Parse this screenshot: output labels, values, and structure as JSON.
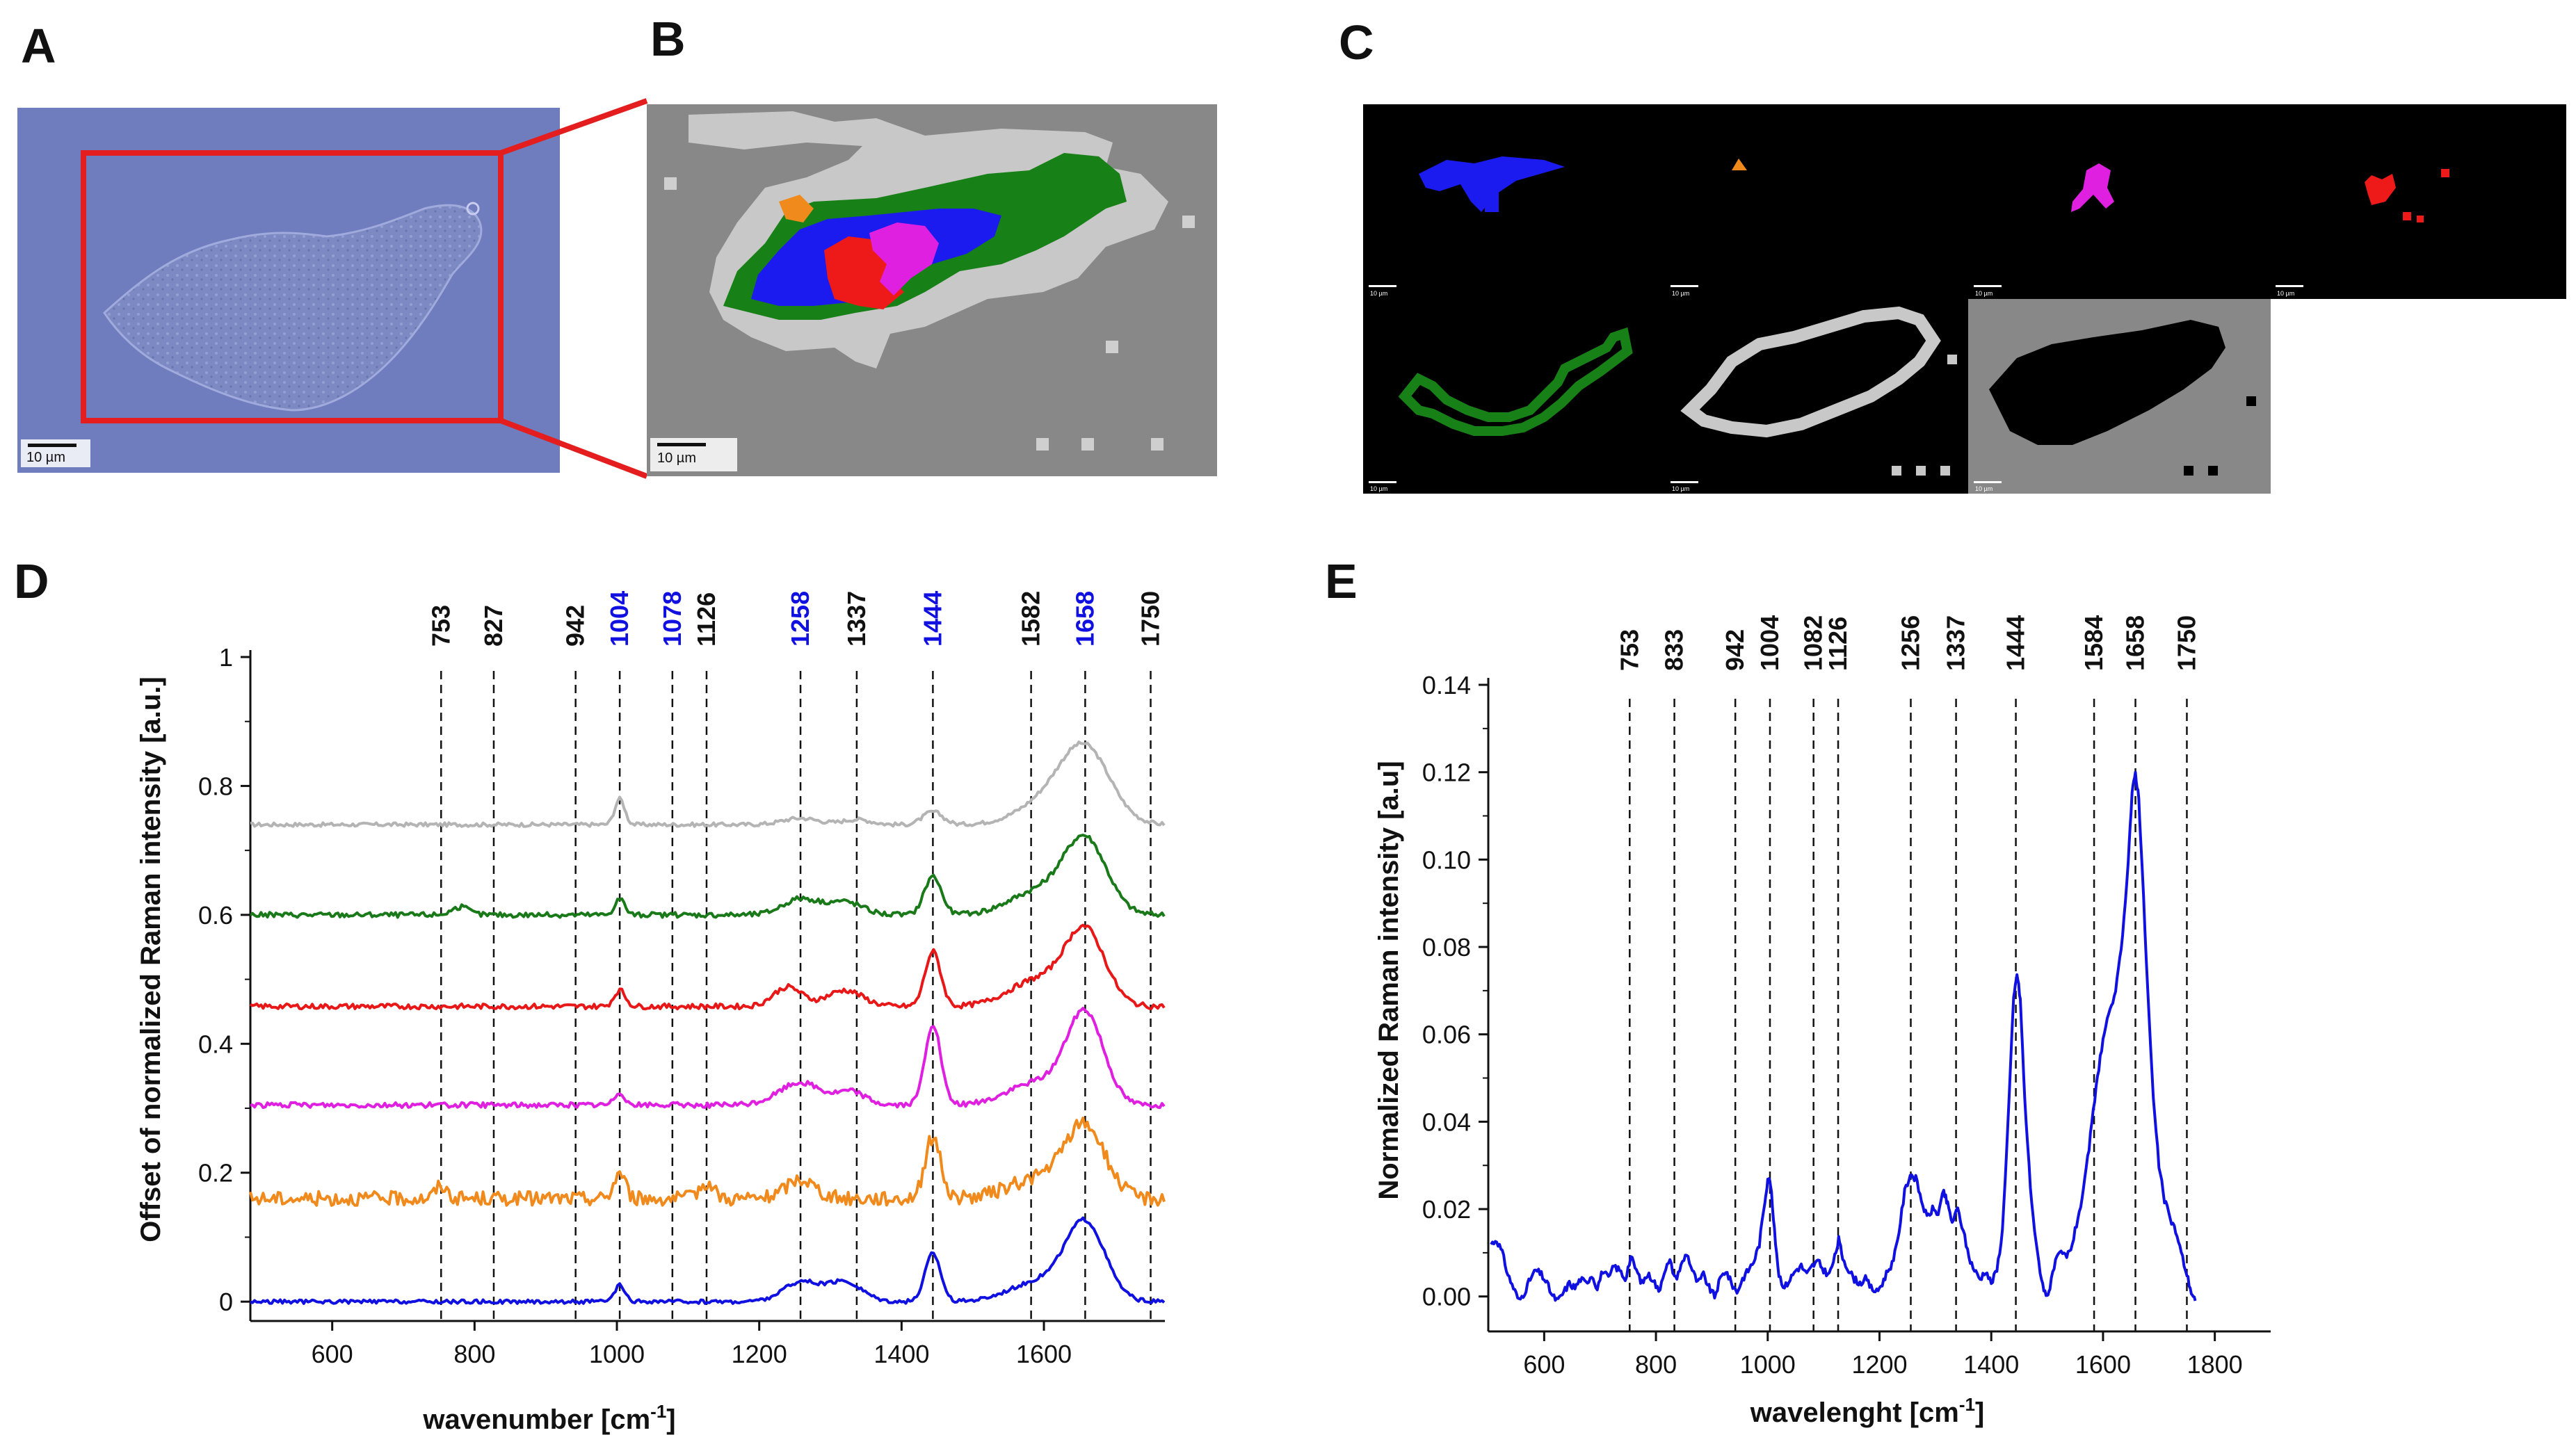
{
  "panels": {
    "a": "A",
    "b": "B",
    "c": "C",
    "d": "D",
    "e": "E"
  },
  "scale_bar_label": "10 µm",
  "chart_data": [
    {
      "type": "line",
      "panel": "D",
      "xlabel": "wavenumber [cm",
      "xlabel_sup": "-1",
      "xlabel_end": "]",
      "ylabel": "Offset of normalized Raman intensity [a.u.]",
      "xlim": [
        485,
        1770
      ],
      "ylim": [
        -0.03,
        1.0
      ],
      "xticks": [
        "600",
        "800",
        "1000",
        "1200",
        "1400",
        "1600"
      ],
      "yticks": [
        "0",
        "0.2",
        "0.4",
        "0.6",
        "0.8",
        "1"
      ],
      "peak_lines": [
        753,
        827,
        942,
        1004,
        1078,
        1126,
        1258,
        1337,
        1444,
        1582,
        1658,
        1750
      ],
      "peak_labels": [
        {
          "text": "753",
          "x": 753,
          "color": "#111111"
        },
        {
          "text": "827",
          "x": 827,
          "color": "#111111"
        },
        {
          "text": "942",
          "x": 942,
          "color": "#111111"
        },
        {
          "text": "1004",
          "x": 1004,
          "color": "#1010e0"
        },
        {
          "text": "1078",
          "x": 1078,
          "color": "#1010e0"
        },
        {
          "text": "1126",
          "x": 1126,
          "color": "#111111"
        },
        {
          "text": "1258",
          "x": 1258,
          "color": "#1010e0"
        },
        {
          "text": "1337",
          "x": 1337,
          "color": "#111111"
        },
        {
          "text": "1444",
          "x": 1444,
          "color": "#1010e0"
        },
        {
          "text": "1582",
          "x": 1582,
          "color": "#111111"
        },
        {
          "text": "1658",
          "x": 1658,
          "color": "#1010e0"
        },
        {
          "text": "1750",
          "x": 1750,
          "color": "#111111"
        }
      ],
      "series": [
        {
          "name": "gray",
          "color": "#b4b4b4",
          "baseline": 0.74,
          "noise": 0.003,
          "peaks": [
            [
              1004,
              0.04,
              7
            ],
            [
              1258,
              0.01,
              25
            ],
            [
              1337,
              0.008,
              20
            ],
            [
              1444,
              0.02,
              14
            ],
            [
              1658,
              0.115,
              35
            ],
            [
              1600,
              0.03,
              40
            ]
          ]
        },
        {
          "name": "green",
          "color": "#1a7a1a",
          "baseline": 0.6,
          "noise": 0.004,
          "peaks": [
            [
              780,
              0.012,
              12
            ],
            [
              1004,
              0.025,
              7
            ],
            [
              1258,
              0.025,
              25
            ],
            [
              1320,
              0.02,
              25
            ],
            [
              1444,
              0.06,
              12
            ],
            [
              1658,
              0.115,
              30
            ],
            [
              1590,
              0.035,
              40
            ]
          ]
        },
        {
          "name": "red",
          "color": "#e81818",
          "baseline": 0.458,
          "noise": 0.004,
          "peaks": [
            [
              1004,
              0.025,
              8
            ],
            [
              1240,
              0.03,
              20
            ],
            [
              1320,
              0.025,
              25
            ],
            [
              1444,
              0.085,
              11
            ],
            [
              1658,
              0.115,
              28
            ],
            [
              1590,
              0.04,
              40
            ]
          ]
        },
        {
          "name": "magenta",
          "color": "#e020e0",
          "baseline": 0.305,
          "noise": 0.004,
          "peaks": [
            [
              1004,
              0.02,
              7
            ],
            [
              1258,
              0.035,
              30
            ],
            [
              1330,
              0.02,
              20
            ],
            [
              1444,
              0.125,
              11
            ],
            [
              1658,
              0.14,
              26
            ],
            [
              1590,
              0.035,
              40
            ]
          ]
        },
        {
          "name": "orange",
          "color": "#f08a1c",
          "baseline": 0.16,
          "noise": 0.011,
          "peaks": [
            [
              753,
              0.02,
              8
            ],
            [
              1004,
              0.04,
              8
            ],
            [
              1126,
              0.025,
              10
            ],
            [
              1258,
              0.03,
              20
            ],
            [
              1444,
              0.095,
              11
            ],
            [
              1658,
              0.11,
              28
            ],
            [
              1590,
              0.03,
              40
            ]
          ]
        },
        {
          "name": "blue",
          "color": "#1010e0",
          "baseline": 0.0,
          "noise": 0.003,
          "peaks": [
            [
              1004,
              0.025,
              7
            ],
            [
              1258,
              0.03,
              25
            ],
            [
              1320,
              0.03,
              25
            ],
            [
              1444,
              0.075,
              11
            ],
            [
              1658,
              0.12,
              28
            ],
            [
              1590,
              0.03,
              40
            ]
          ]
        }
      ]
    },
    {
      "type": "line",
      "panel": "E",
      "xlabel": "wavelenght [cm",
      "xlabel_sup": "-1",
      "xlabel_end": "]",
      "ylabel": "Normalized Raman intensity [a.u]",
      "xlim": [
        500,
        1900
      ],
      "ylim": [
        -0.008,
        0.14
      ],
      "xticks": [
        "600",
        "800",
        "1000",
        "1200",
        "1400",
        "1600",
        "1800"
      ],
      "yticks": [
        "0.00",
        "0.02",
        "0.04",
        "0.06",
        "0.08",
        "0.10",
        "0.12",
        "0.14"
      ],
      "peak_lines": [
        753,
        833,
        942,
        1004,
        1082,
        1126,
        1256,
        1337,
        1444,
        1584,
        1658,
        1750
      ],
      "peak_labels": [
        {
          "text": "753",
          "x": 753,
          "color": "#111111"
        },
        {
          "text": "833",
          "x": 833,
          "color": "#111111"
        },
        {
          "text": "942",
          "x": 942,
          "color": "#111111"
        },
        {
          "text": "1004",
          "x": 1004,
          "color": "#111111"
        },
        {
          "text": "1082",
          "x": 1082,
          "color": "#111111"
        },
        {
          "text": "1126",
          "x": 1126,
          "color": "#111111"
        },
        {
          "text": "1256",
          "x": 1256,
          "color": "#111111"
        },
        {
          "text": "1337",
          "x": 1337,
          "color": "#111111"
        },
        {
          "text": "1444",
          "x": 1444,
          "color": "#111111"
        },
        {
          "text": "1584",
          "x": 1584,
          "color": "#111111"
        },
        {
          "text": "1658",
          "x": 1658,
          "color": "#111111"
        },
        {
          "text": "1750",
          "x": 1750,
          "color": "#111111"
        }
      ],
      "series": [
        {
          "name": "spectrum",
          "color": "#1010e0",
          "x_end": 1765,
          "points": [
            [
              505,
              0.012
            ],
            [
              515,
              0.013
            ],
            [
              525,
              0.01
            ],
            [
              535,
              0.005
            ],
            [
              545,
              0.002
            ],
            [
              555,
              -0.001
            ],
            [
              565,
              0.001
            ],
            [
              575,
              0.004
            ],
            [
              585,
              0.006
            ],
            [
              595,
              0.005
            ],
            [
              605,
              0.003
            ],
            [
              615,
              0.0
            ],
            [
              625,
              -0.001
            ],
            [
              635,
              0.001
            ],
            [
              645,
              0.003
            ],
            [
              655,
              0.002
            ],
            [
              665,
              0.004
            ],
            [
              675,
              0.003
            ],
            [
              685,
              0.005
            ],
            [
              695,
              0.002
            ],
            [
              705,
              0.006
            ],
            [
              715,
              0.004
            ],
            [
              725,
              0.007
            ],
            [
              735,
              0.006
            ],
            [
              745,
              0.004
            ],
            [
              755,
              0.009
            ],
            [
              765,
              0.006
            ],
            [
              775,
              0.003
            ],
            [
              785,
              0.005
            ],
            [
              795,
              0.004
            ],
            [
              805,
              0.001
            ],
            [
              815,
              0.006
            ],
            [
              825,
              0.008
            ],
            [
              835,
              0.004
            ],
            [
              845,
              0.007
            ],
            [
              855,
              0.01
            ],
            [
              865,
              0.006
            ],
            [
              875,
              0.003
            ],
            [
              885,
              0.005
            ],
            [
              895,
              0.002
            ],
            [
              905,
              0.0
            ],
            [
              915,
              0.004
            ],
            [
              925,
              0.006
            ],
            [
              935,
              0.003
            ],
            [
              945,
              0.001
            ],
            [
              955,
              0.004
            ],
            [
              965,
              0.006
            ],
            [
              975,
              0.008
            ],
            [
              985,
              0.012
            ],
            [
              995,
              0.022
            ],
            [
              1000,
              0.027
            ],
            [
              1005,
              0.026
            ],
            [
              1012,
              0.015
            ],
            [
              1020,
              0.005
            ],
            [
              1030,
              0.002
            ],
            [
              1040,
              0.004
            ],
            [
              1050,
              0.006
            ],
            [
              1060,
              0.007
            ],
            [
              1070,
              0.005
            ],
            [
              1080,
              0.007
            ],
            [
              1090,
              0.008
            ],
            [
              1100,
              0.006
            ],
            [
              1110,
              0.005
            ],
            [
              1120,
              0.009
            ],
            [
              1127,
              0.013
            ],
            [
              1134,
              0.009
            ],
            [
              1145,
              0.006
            ],
            [
              1155,
              0.004
            ],
            [
              1165,
              0.003
            ],
            [
              1175,
              0.004
            ],
            [
              1185,
              0.002
            ],
            [
              1195,
              0.001
            ],
            [
              1205,
              0.003
            ],
            [
              1215,
              0.006
            ],
            [
              1225,
              0.008
            ],
            [
              1235,
              0.015
            ],
            [
              1245,
              0.024
            ],
            [
              1255,
              0.028
            ],
            [
              1265,
              0.027
            ],
            [
              1275,
              0.022
            ],
            [
              1285,
              0.018
            ],
            [
              1295,
              0.02
            ],
            [
              1305,
              0.019
            ],
            [
              1315,
              0.024
            ],
            [
              1322,
              0.021
            ],
            [
              1330,
              0.017
            ],
            [
              1340,
              0.02
            ],
            [
              1350,
              0.015
            ],
            [
              1360,
              0.009
            ],
            [
              1370,
              0.006
            ],
            [
              1380,
              0.004
            ],
            [
              1390,
              0.006
            ],
            [
              1400,
              0.003
            ],
            [
              1410,
              0.006
            ],
            [
              1420,
              0.015
            ],
            [
              1430,
              0.04
            ],
            [
              1440,
              0.068
            ],
            [
              1446,
              0.074
            ],
            [
              1452,
              0.068
            ],
            [
              1460,
              0.045
            ],
            [
              1470,
              0.025
            ],
            [
              1480,
              0.012
            ],
            [
              1490,
              0.004
            ],
            [
              1498,
              0.0
            ],
            [
              1505,
              0.002
            ],
            [
              1515,
              0.008
            ],
            [
              1525,
              0.01
            ],
            [
              1535,
              0.009
            ],
            [
              1545,
              0.012
            ],
            [
              1555,
              0.018
            ],
            [
              1565,
              0.024
            ],
            [
              1575,
              0.034
            ],
            [
              1585,
              0.045
            ],
            [
              1595,
              0.055
            ],
            [
              1605,
              0.062
            ],
            [
              1615,
              0.066
            ],
            [
              1625,
              0.072
            ],
            [
              1635,
              0.082
            ],
            [
              1645,
              0.1
            ],
            [
              1652,
              0.115
            ],
            [
              1658,
              0.12
            ],
            [
              1664,
              0.114
            ],
            [
              1670,
              0.098
            ],
            [
              1680,
              0.07
            ],
            [
              1690,
              0.045
            ],
            [
              1700,
              0.03
            ],
            [
              1710,
              0.022
            ],
            [
              1720,
              0.018
            ],
            [
              1730,
              0.015
            ],
            [
              1740,
              0.01
            ],
            [
              1750,
              0.005
            ],
            [
              1758,
              0.001
            ],
            [
              1765,
              -0.001
            ]
          ]
        }
      ]
    }
  ]
}
